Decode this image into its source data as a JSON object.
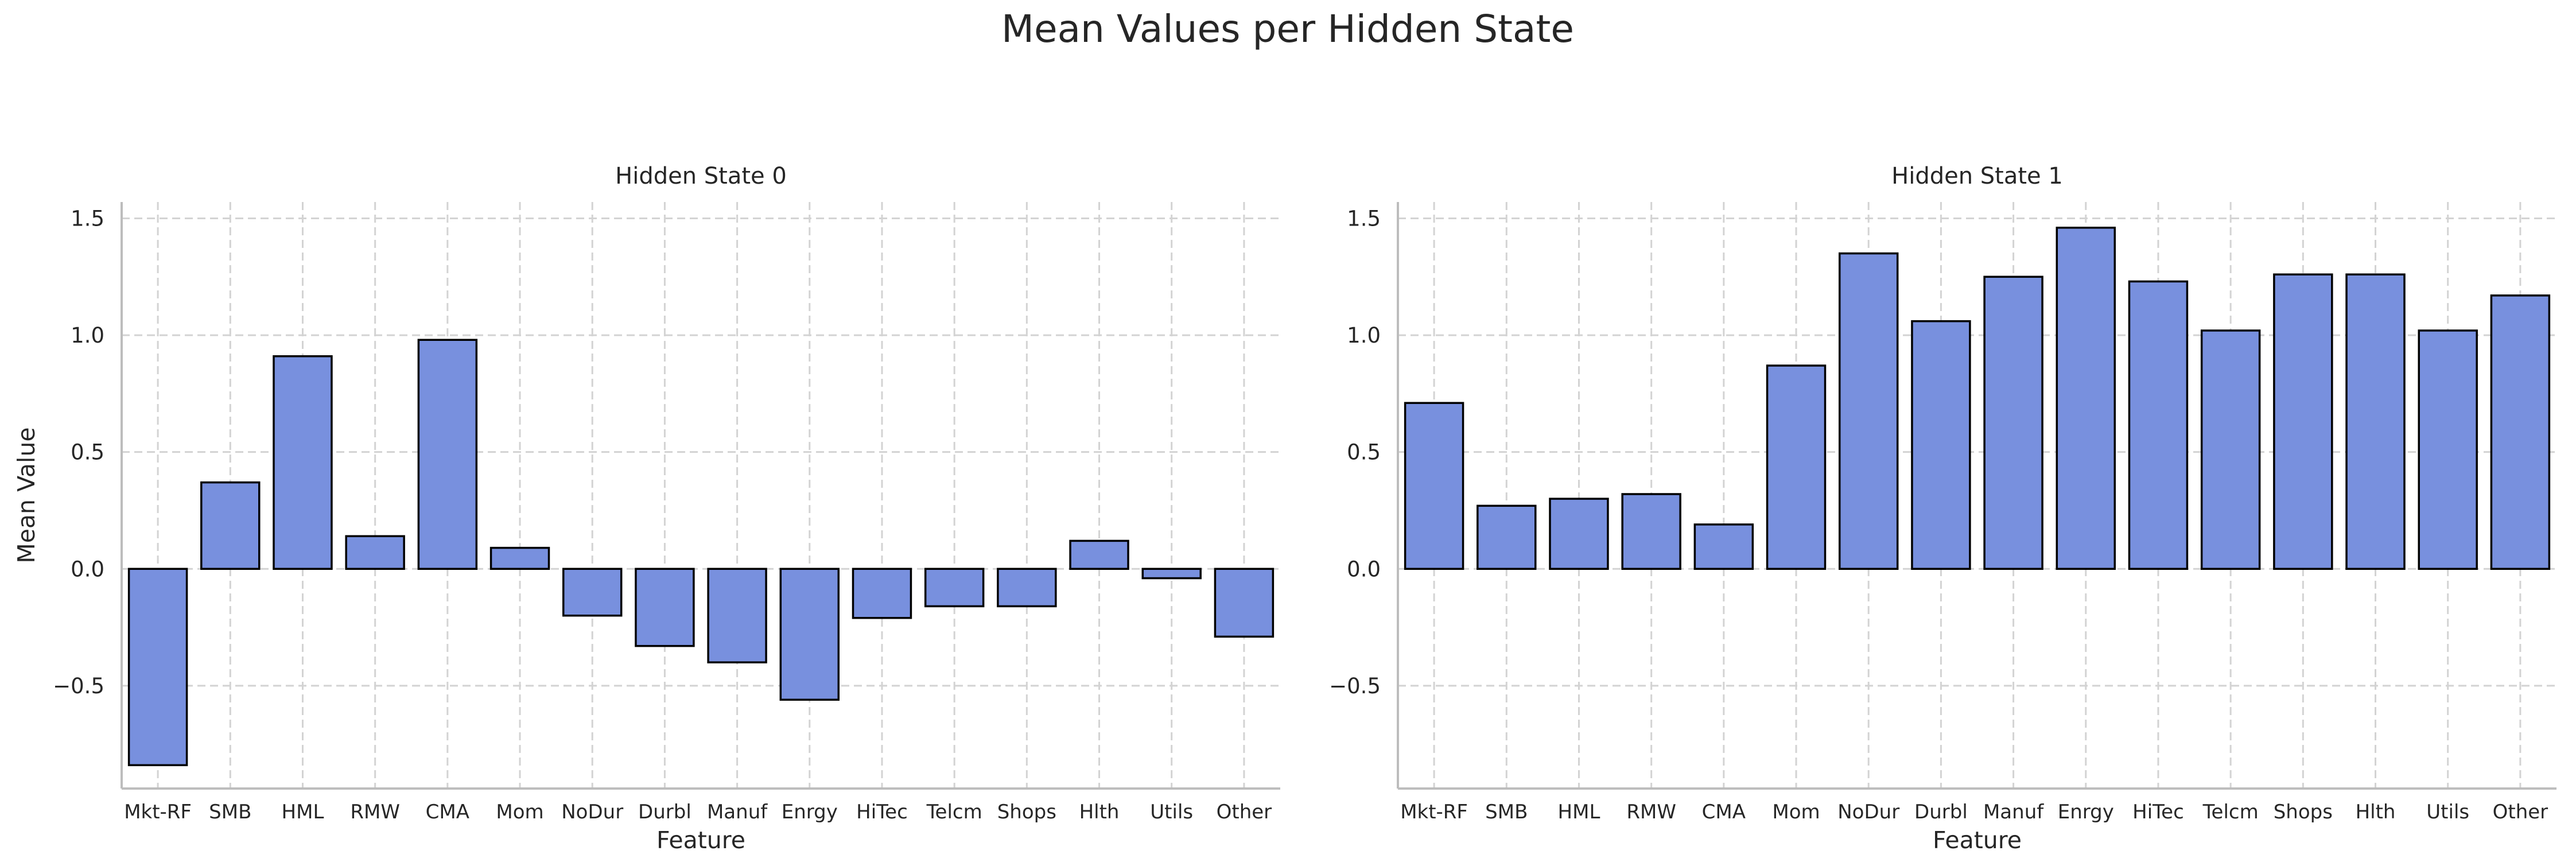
{
  "figure": {
    "title": "Mean Values per Hidden State"
  },
  "style": {
    "bar_color": "#7890de",
    "bar_edge": "#000000",
    "grid_color": "#d3d3d3",
    "axis_color": "#bdbdbd",
    "text_color": "#262626"
  },
  "chart_data": [
    {
      "type": "bar",
      "title": "Hidden State 0",
      "xlabel": "Feature",
      "ylabel": "Mean Value",
      "categories": [
        "Mkt-RF",
        "SMB",
        "HML",
        "RMW",
        "CMA",
        "Mom",
        "NoDur",
        "Durbl",
        "Manuf",
        "Enrgy",
        "HiTec",
        "Telcm",
        "Shops",
        "Hlth",
        "Utils",
        "Other"
      ],
      "values": [
        -0.84,
        0.37,
        0.91,
        0.14,
        0.98,
        0.09,
        -0.2,
        -0.33,
        -0.4,
        -0.56,
        -0.21,
        -0.16,
        -0.16,
        0.12,
        -0.04,
        -0.29
      ],
      "ylim": [
        -0.94,
        1.57
      ],
      "yticks": [
        -0.5,
        0.0,
        0.5,
        1.0,
        1.5
      ],
      "ytick_labels": [
        "−0.5",
        "0.0",
        "0.5",
        "1.0",
        "1.5"
      ],
      "grid": true
    },
    {
      "type": "bar",
      "title": "Hidden State 1",
      "xlabel": "Feature",
      "ylabel": "",
      "categories": [
        "Mkt-RF",
        "SMB",
        "HML",
        "RMW",
        "CMA",
        "Mom",
        "NoDur",
        "Durbl",
        "Manuf",
        "Enrgy",
        "HiTec",
        "Telcm",
        "Shops",
        "Hlth",
        "Utils",
        "Other"
      ],
      "values": [
        0.71,
        0.27,
        0.3,
        0.32,
        0.19,
        0.87,
        1.35,
        1.06,
        1.25,
        1.46,
        1.23,
        1.02,
        1.26,
        1.26,
        1.02,
        1.17
      ],
      "ylim": [
        -0.94,
        1.57
      ],
      "yticks": [
        -0.5,
        0.0,
        0.5,
        1.0,
        1.5
      ],
      "ytick_labels": [
        "−0.5",
        "0.0",
        "0.5",
        "1.0",
        "1.5"
      ],
      "grid": true
    }
  ]
}
